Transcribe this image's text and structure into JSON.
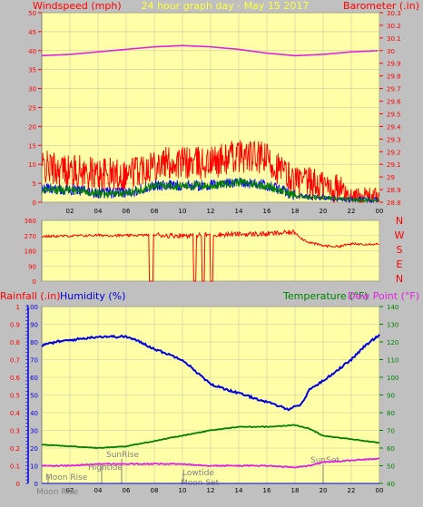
{
  "colors": {
    "plot_bg": "#ffffa8",
    "frame_bg": "#c0c0c0",
    "wind": "#ff0000",
    "gust_dark": "#0000ff",
    "wind_green": "#008000",
    "barometer": "#e020e0",
    "direction": "#ff0000",
    "humidity": "#0000e0",
    "temperature": "#008000",
    "dewpoint": "#e020e0",
    "rain": "#0000e0",
    "label_red": "#ff0000",
    "title_yellow": "#ffff40"
  },
  "panel1": {
    "left_title": "Windspeed (mph)",
    "center_title": "24 hour graph day - May 15 2017",
    "right_title": "Barometer (.in)",
    "left_ticks": [
      "0",
      "5",
      "10",
      "15",
      "20",
      "25",
      "30",
      "35",
      "40",
      "45",
      "50"
    ],
    "right_ticks": [
      "28.8",
      "28.9",
      "29",
      "29.1",
      "29.2",
      "29.3",
      "29.4",
      "29.5",
      "29.6",
      "29.7",
      "29.8",
      "29.9",
      "30",
      "30.1",
      "30.2",
      "30.3"
    ],
    "x_ticks": [
      "02",
      "04",
      "06",
      "08",
      "10",
      "12",
      "14",
      "16",
      "18",
      "20",
      "22",
      "00"
    ]
  },
  "panel2": {
    "left_ticks": [
      "0",
      "90",
      "180",
      "270",
      "360"
    ],
    "compass": [
      "N",
      "W",
      "S",
      "E",
      "N"
    ]
  },
  "panel3": {
    "rain_title": "Rainfall (.in)",
    "humidity_title": "Humidity (%)",
    "temp_title": "Temperature (°F)",
    "dew_title": "Dew Point (°F)",
    "rain_ticks": [
      "0",
      "0.1",
      "0.2",
      "0.3",
      "0.4",
      "0.5",
      "0.6",
      "0.7",
      "0.8",
      "0.9",
      "1"
    ],
    "humidity_ticks": [
      "0",
      "10",
      "20",
      "30",
      "40",
      "50",
      "60",
      "70",
      "80",
      "90",
      "100"
    ],
    "temp_ticks": [
      "40",
      "50",
      "60",
      "70",
      "80",
      "90",
      "100",
      "110",
      "120",
      "130",
      "140"
    ],
    "x_ticks": [
      "02",
      "04",
      "06",
      "08",
      "10",
      "12",
      "14",
      "16",
      "18",
      "20",
      "22",
      "00"
    ],
    "moonrise_label": "Moon Rise",
    "moonrise_bottom_label": "Moon Rise",
    "sunrise_label": "SunRise",
    "hightide_label": "Hightide",
    "lowtide_label": "Lowtide",
    "moonset_label": "Moon Set",
    "sunset_label": "SunSet"
  },
  "chart_data": [
    {
      "type": "line",
      "title": "24 hour graph day - May 15 2017",
      "xlabel": "",
      "ylabel": "Windspeed (mph)",
      "ylim": [
        0,
        50
      ],
      "y2label": "Barometer (.in)",
      "y2lim": [
        28.8,
        30.3
      ],
      "x_unit": "hour",
      "series": [
        {
          "axis": "right",
          "x": [
            0,
            2,
            4,
            6,
            8,
            10,
            12,
            14,
            16,
            18,
            20,
            22,
            24
          ],
          "values": [
            29.96,
            29.97,
            29.99,
            30.01,
            30.03,
            30.04,
            30.03,
            30.01,
            29.98,
            29.96,
            29.97,
            29.99,
            30.0
          ]
        },
        {
          "axis": "left",
          "x": [
            0,
            2,
            4,
            6,
            8,
            10,
            12,
            14,
            16,
            18,
            20,
            22,
            24
          ],
          "values": [
            8,
            7,
            6,
            6,
            9,
            9,
            9,
            11,
            10,
            4,
            3,
            1,
            1
          ]
        },
        {
          "axis": "left",
          "x": [
            0,
            2,
            4,
            6,
            8,
            10,
            12,
            14,
            16,
            18,
            20,
            22,
            24
          ],
          "values": [
            3,
            3,
            2,
            2,
            4,
            4,
            4,
            5,
            4,
            1.5,
            1,
            0.5,
            0.5
          ]
        }
      ]
    },
    {
      "type": "line",
      "ylabel": "",
      "ylim": [
        0,
        360
      ],
      "x_unit": "hour",
      "series": [
        {
          "axis": "left",
          "x": [
            0,
            2,
            4,
            6,
            8,
            9,
            11,
            12,
            14,
            16,
            18,
            18.5,
            19,
            20,
            21,
            22,
            24
          ],
          "values": [
            265,
            268,
            272,
            270,
            275,
            270,
            272,
            275,
            278,
            280,
            290,
            250,
            230,
            210,
            205,
            220,
            220
          ]
        }
      ]
    },
    {
      "type": "line",
      "x_unit": "hour",
      "series": [
        {
          "name": "Humidity (%)",
          "axis": "left",
          "x": [
            0,
            1,
            2,
            4,
            6,
            7,
            8,
            10,
            11,
            12,
            14,
            16,
            17.5,
            18.5,
            19,
            20,
            22,
            23,
            24
          ],
          "values": [
            78,
            80,
            81,
            83,
            83,
            80,
            76,
            70,
            63,
            56,
            51,
            46,
            42,
            45,
            53,
            58,
            70,
            78,
            84
          ]
        },
        {
          "name": "Temperature (°F)",
          "axis": "right",
          "x": [
            0,
            2,
            4,
            6,
            8,
            10,
            12,
            14,
            16,
            18,
            19,
            20,
            22,
            24
          ],
          "values": [
            62,
            61,
            60,
            61,
            64,
            67,
            70,
            72,
            72,
            73,
            71,
            67,
            65,
            63
          ]
        },
        {
          "name": "Dew Point (°F)",
          "axis": "right",
          "x": [
            0,
            2,
            4,
            6,
            8,
            10,
            12,
            14,
            16,
            18,
            19,
            20,
            22,
            24
          ],
          "values": [
            50,
            50,
            51,
            51,
            51,
            51,
            50,
            50,
            50,
            49,
            50,
            52,
            53,
            54
          ]
        },
        {
          "name": "Rainfall (.in)",
          "axis": "rain",
          "x": [
            0,
            24
          ],
          "values": [
            0,
            0
          ]
        }
      ],
      "rain_ylim": [
        0,
        1
      ],
      "humidity_ylim": [
        0,
        100
      ],
      "temp_ylim": [
        40,
        140
      ]
    }
  ]
}
